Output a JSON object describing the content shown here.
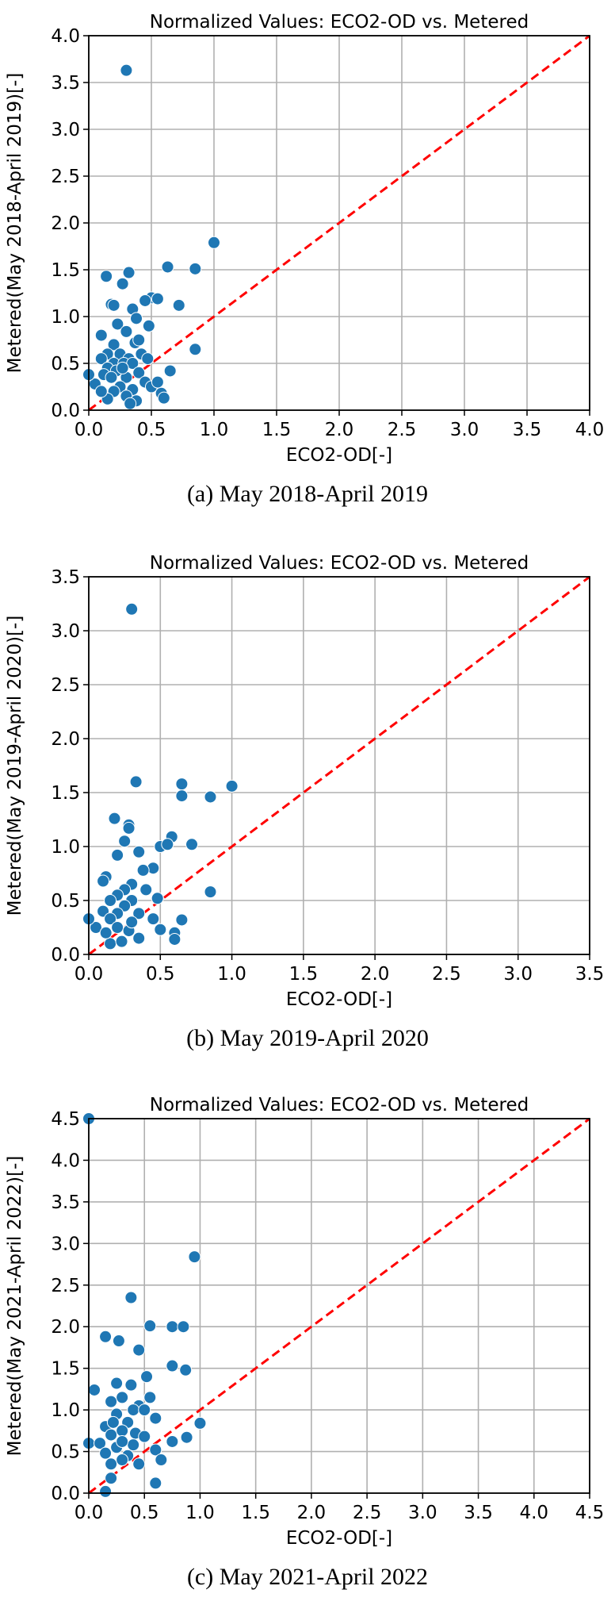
{
  "chart_data": [
    {
      "type": "scatter",
      "title": "Normalized Values: ECO2-OD vs. Metered",
      "xlabel": "ECO2-OD[-]",
      "ylabel": "Metered(May 2018-April 2019)[-]",
      "caption": "(a) May 2018-April 2019",
      "xlim": [
        0,
        4.0
      ],
      "ylim": [
        0,
        4.0
      ],
      "ticks": [
        "0.0",
        "0.5",
        "1.0",
        "1.5",
        "2.0",
        "2.5",
        "3.0",
        "3.5",
        "4.0"
      ],
      "grid": true,
      "point_color": "#1f77b4",
      "reference_line": {
        "type": "y=x",
        "color": "#ff0000",
        "style": "dashed"
      },
      "points": [
        [
          0.3,
          3.63
        ],
        [
          1.0,
          1.79
        ],
        [
          0.63,
          1.53
        ],
        [
          0.85,
          1.51
        ],
        [
          0.32,
          1.47
        ],
        [
          0.14,
          1.43
        ],
        [
          0.27,
          1.35
        ],
        [
          0.5,
          1.2
        ],
        [
          0.55,
          1.19
        ],
        [
          0.45,
          1.17
        ],
        [
          0.18,
          1.13
        ],
        [
          0.2,
          1.12
        ],
        [
          0.72,
          1.12
        ],
        [
          0.35,
          1.08
        ],
        [
          0.23,
          0.92
        ],
        [
          0.48,
          0.9
        ],
        [
          0.38,
          0.98
        ],
        [
          0.3,
          0.84
        ],
        [
          0.1,
          0.8
        ],
        [
          0.37,
          0.72
        ],
        [
          0.4,
          0.75
        ],
        [
          0.2,
          0.7
        ],
        [
          0.85,
          0.65
        ],
        [
          0.15,
          0.6
        ],
        [
          0.25,
          0.6
        ],
        [
          0.32,
          0.55
        ],
        [
          0.1,
          0.55
        ],
        [
          0.2,
          0.5
        ],
        [
          0.28,
          0.5
        ],
        [
          0.35,
          0.5
        ],
        [
          0.15,
          0.45
        ],
        [
          0.22,
          0.42
        ],
        [
          0.4,
          0.4
        ],
        [
          0.65,
          0.42
        ],
        [
          0.12,
          0.38
        ],
        [
          0.18,
          0.35
        ],
        [
          0.3,
          0.35
        ],
        [
          0.45,
          0.3
        ],
        [
          0.05,
          0.28
        ],
        [
          0.25,
          0.25
        ],
        [
          0.35,
          0.22
        ],
        [
          0.5,
          0.25
        ],
        [
          0.2,
          0.2
        ],
        [
          0.3,
          0.15
        ],
        [
          0.58,
          0.18
        ],
        [
          0.6,
          0.13
        ],
        [
          0.15,
          0.12
        ],
        [
          0.38,
          0.1
        ],
        [
          0.33,
          0.07
        ],
        [
          0.0,
          0.38
        ],
        [
          0.1,
          0.2
        ],
        [
          0.27,
          0.45
        ],
        [
          0.42,
          0.6
        ],
        [
          0.55,
          0.3
        ],
        [
          0.47,
          0.55
        ]
      ]
    },
    {
      "type": "scatter",
      "title": "Normalized Values: ECO2-OD vs. Metered",
      "xlabel": "ECO2-OD[-]",
      "ylabel": "Metered(May 2019-April 2020)[-]",
      "caption": "(b) May 2019-April 2020",
      "xlim": [
        0,
        3.5
      ],
      "ylim": [
        0,
        3.5
      ],
      "ticks": [
        "0.0",
        "0.5",
        "1.0",
        "1.5",
        "2.0",
        "2.5",
        "3.0",
        "3.5"
      ],
      "grid": true,
      "point_color": "#1f77b4",
      "reference_line": {
        "type": "y=x",
        "color": "#ff0000",
        "style": "dashed"
      },
      "points": [
        [
          0.3,
          3.2
        ],
        [
          1.0,
          1.56
        ],
        [
          0.65,
          1.58
        ],
        [
          0.65,
          1.47
        ],
        [
          0.85,
          1.46
        ],
        [
          0.33,
          1.6
        ],
        [
          0.18,
          1.26
        ],
        [
          0.28,
          1.2
        ],
        [
          0.28,
          1.17
        ],
        [
          0.5,
          1.0
        ],
        [
          0.58,
          1.09
        ],
        [
          0.72,
          1.02
        ],
        [
          0.55,
          1.02
        ],
        [
          0.25,
          1.05
        ],
        [
          0.35,
          0.95
        ],
        [
          0.2,
          0.92
        ],
        [
          0.45,
          0.8
        ],
        [
          0.38,
          0.78
        ],
        [
          0.12,
          0.72
        ],
        [
          0.1,
          0.68
        ],
        [
          0.3,
          0.65
        ],
        [
          0.25,
          0.6
        ],
        [
          0.2,
          0.55
        ],
        [
          0.15,
          0.5
        ],
        [
          0.3,
          0.5
        ],
        [
          0.85,
          0.58
        ],
        [
          0.25,
          0.45
        ],
        [
          0.1,
          0.4
        ],
        [
          0.2,
          0.38
        ],
        [
          0.35,
          0.38
        ],
        [
          0.15,
          0.33
        ],
        [
          0.65,
          0.32
        ],
        [
          0.45,
          0.33
        ],
        [
          0.05,
          0.25
        ],
        [
          0.2,
          0.25
        ],
        [
          0.28,
          0.22
        ],
        [
          0.5,
          0.23
        ],
        [
          0.6,
          0.2
        ],
        [
          0.6,
          0.14
        ],
        [
          0.15,
          0.1
        ],
        [
          0.23,
          0.12
        ],
        [
          0.35,
          0.15
        ],
        [
          0.0,
          0.33
        ],
        [
          0.4,
          0.6
        ],
        [
          0.3,
          0.3
        ],
        [
          0.12,
          0.2
        ],
        [
          0.48,
          0.52
        ]
      ]
    },
    {
      "type": "scatter",
      "title": "Normalized Values: ECO2-OD vs. Metered",
      "xlabel": "ECO2-OD[-]",
      "ylabel": "Metered(May 2021-April 2022)[-]",
      "caption": "(c) May 2021-April 2022",
      "xlim": [
        0,
        4.5
      ],
      "ylim": [
        0,
        4.5
      ],
      "ticks": [
        "0.0",
        "0.5",
        "1.0",
        "1.5",
        "2.0",
        "2.5",
        "3.0",
        "3.5",
        "4.0",
        "4.5"
      ],
      "grid": true,
      "point_color": "#1f77b4",
      "reference_line": {
        "type": "y=x",
        "color": "#ff0000",
        "style": "dashed"
      },
      "points": [
        [
          0.0,
          4.5
        ],
        [
          0.95,
          2.84
        ],
        [
          0.38,
          2.35
        ],
        [
          0.55,
          2.01
        ],
        [
          0.75,
          2.0
        ],
        [
          0.85,
          2.0
        ],
        [
          0.15,
          1.88
        ],
        [
          0.27,
          1.83
        ],
        [
          0.45,
          1.72
        ],
        [
          0.75,
          1.53
        ],
        [
          0.87,
          1.48
        ],
        [
          0.52,
          1.4
        ],
        [
          0.25,
          1.32
        ],
        [
          0.38,
          1.3
        ],
        [
          0.05,
          1.24
        ],
        [
          0.3,
          1.15
        ],
        [
          0.55,
          1.15
        ],
        [
          0.2,
          1.1
        ],
        [
          0.45,
          1.05
        ],
        [
          0.4,
          1.0
        ],
        [
          0.25,
          0.95
        ],
        [
          0.6,
          0.9
        ],
        [
          0.35,
          0.85
        ],
        [
          0.15,
          0.8
        ],
        [
          1.0,
          0.84
        ],
        [
          0.3,
          0.75
        ],
        [
          0.42,
          0.72
        ],
        [
          0.2,
          0.7
        ],
        [
          0.5,
          0.68
        ],
        [
          0.88,
          0.67
        ],
        [
          0.75,
          0.62
        ],
        [
          0.0,
          0.6
        ],
        [
          0.1,
          0.6
        ],
        [
          0.25,
          0.55
        ],
        [
          0.4,
          0.58
        ],
        [
          0.6,
          0.52
        ],
        [
          0.15,
          0.48
        ],
        [
          0.35,
          0.45
        ],
        [
          0.3,
          0.4
        ],
        [
          0.45,
          0.35
        ],
        [
          0.2,
          0.35
        ],
        [
          0.65,
          0.4
        ],
        [
          0.2,
          0.18
        ],
        [
          0.6,
          0.12
        ],
        [
          0.15,
          0.02
        ],
        [
          0.5,
          1.0
        ],
        [
          0.3,
          0.62
        ],
        [
          0.22,
          0.85
        ]
      ]
    }
  ]
}
